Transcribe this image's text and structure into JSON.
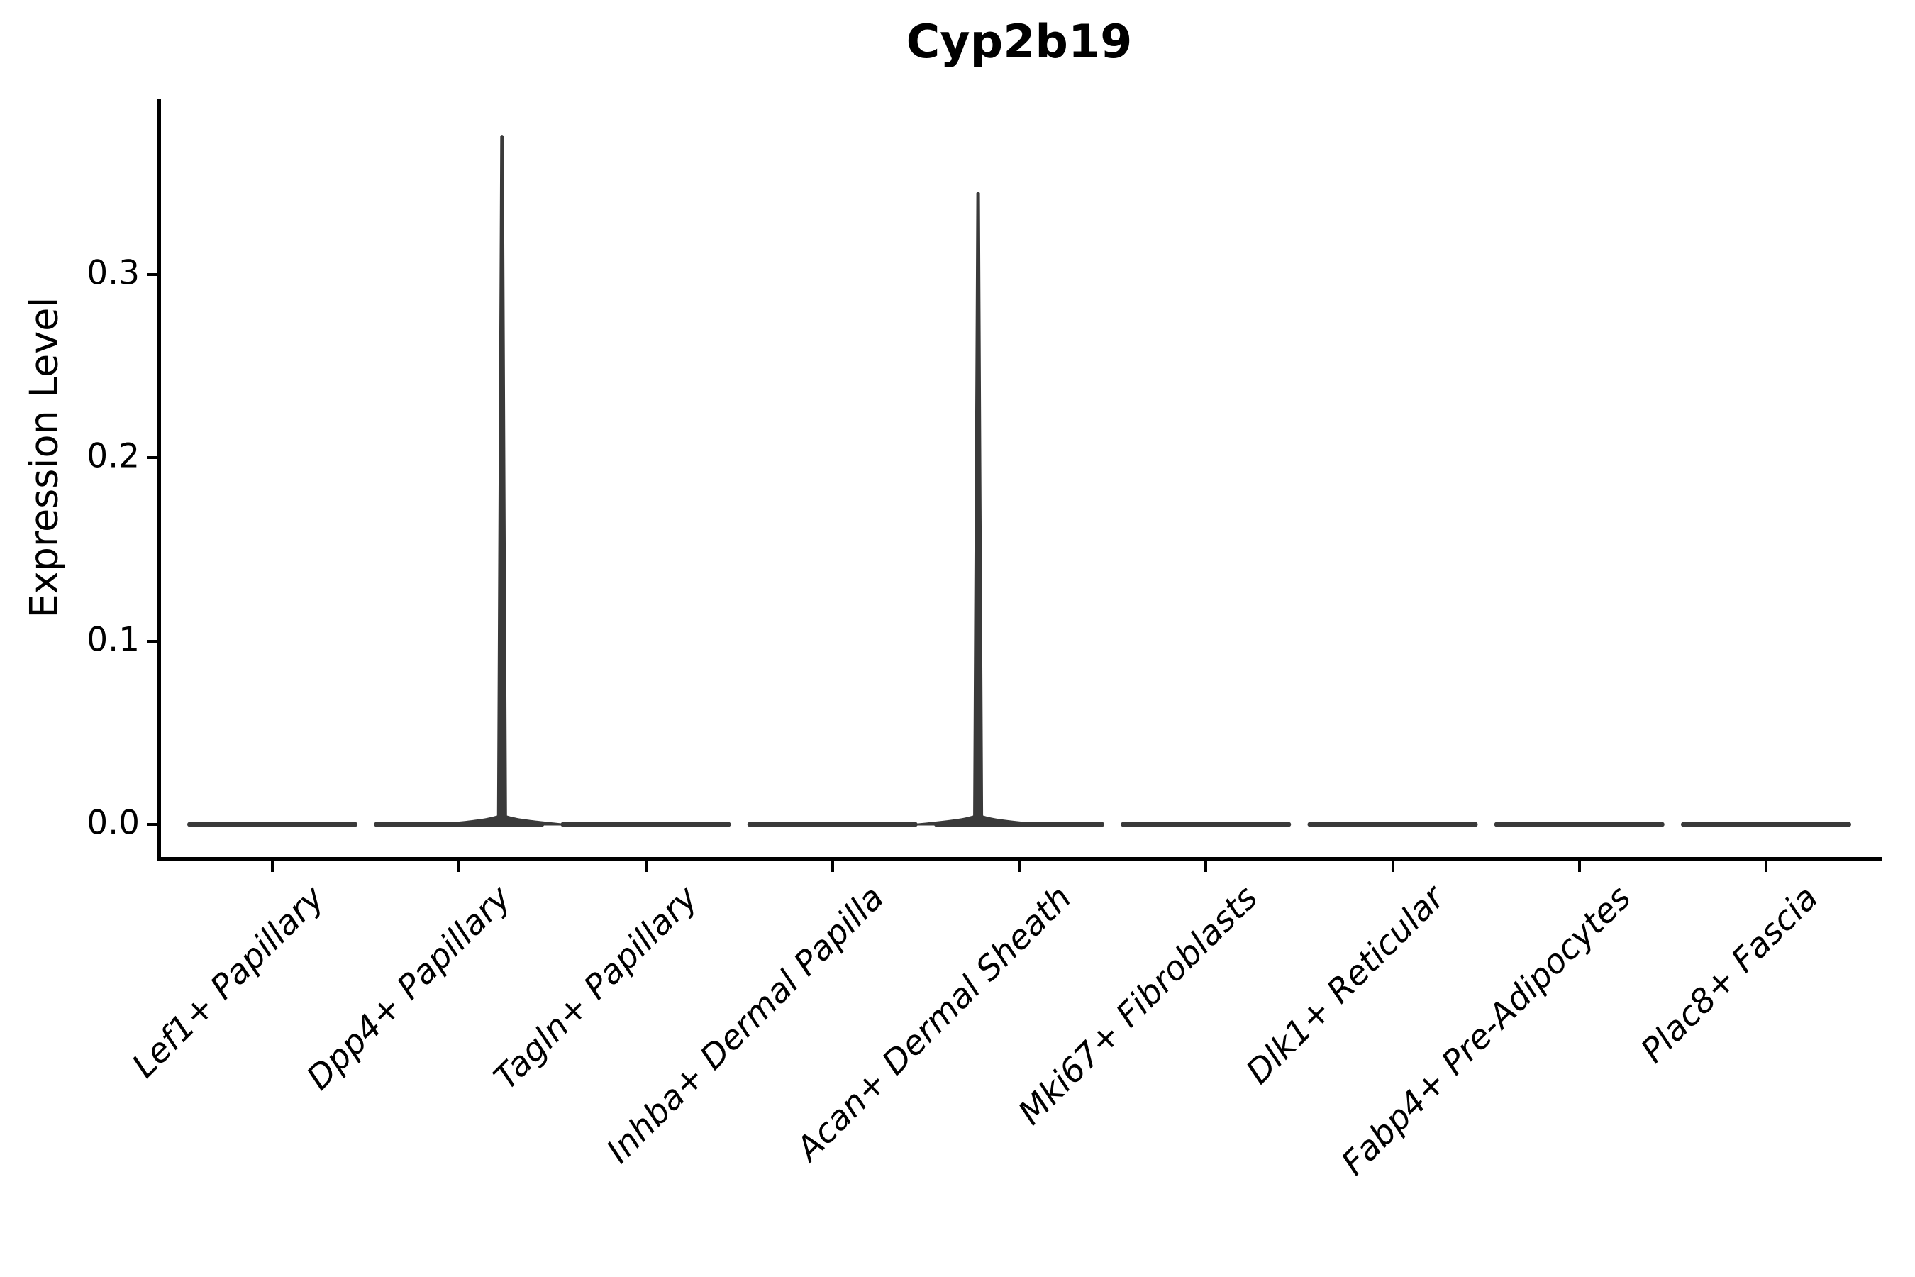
{
  "chart_data": {
    "type": "violin",
    "title": "Cyp2b19",
    "ylabel": "Expression Level",
    "xlabel": "",
    "grid": false,
    "legend": false,
    "background": "#ffffff",
    "axis_color": "#000000",
    "violin_color": "#3a3a3a",
    "x_tick_rotation": 45,
    "yticks": [
      {
        "value": 0.0,
        "label": "0.0"
      },
      {
        "value": 0.1,
        "label": "0.1"
      },
      {
        "value": 0.2,
        "label": "0.2"
      },
      {
        "value": 0.3,
        "label": "0.3"
      }
    ],
    "ylim": [
      -0.019,
      0.396
    ],
    "categories": [
      "Lef1+ Papillary",
      "Dpp4+ Papillary",
      "Tagln+ Papillary",
      "Inhba+ Dermal Papilla",
      "Acan+ Dermal Sheath",
      "Mki67+ Fibroblasts",
      "Dlk1+ Reticular",
      "Fabp4+ Pre-Adipocytes",
      "Plac8+ Fascia"
    ],
    "violins": [
      {
        "category": "Lef1+ Papillary",
        "bulk_value": 0,
        "max_value": 0,
        "spike_offset_units": 0
      },
      {
        "category": "Dpp4+ Papillary",
        "bulk_value": 0,
        "max_value": 0.377,
        "spike_offset_units": 0.23
      },
      {
        "category": "Tagln+ Papillary",
        "bulk_value": 0,
        "max_value": 0,
        "spike_offset_units": 0
      },
      {
        "category": "Inhba+ Dermal Papilla",
        "bulk_value": 0,
        "max_value": 0,
        "spike_offset_units": 0
      },
      {
        "category": "Acan+ Dermal Sheath",
        "bulk_value": 0,
        "max_value": 0.346,
        "spike_offset_units": -0.22
      },
      {
        "category": "Mki67+ Fibroblasts",
        "bulk_value": 0,
        "max_value": 0,
        "spike_offset_units": 0
      },
      {
        "category": "Dlk1+ Reticular",
        "bulk_value": 0,
        "max_value": 0,
        "spike_offset_units": 0
      },
      {
        "category": "Fabp4+ Pre-Adipocytes",
        "bulk_value": 0,
        "max_value": 0,
        "spike_offset_units": 0
      },
      {
        "category": "Plac8+ Fascia",
        "bulk_value": 0,
        "max_value": 0,
        "spike_offset_units": 0
      }
    ]
  }
}
